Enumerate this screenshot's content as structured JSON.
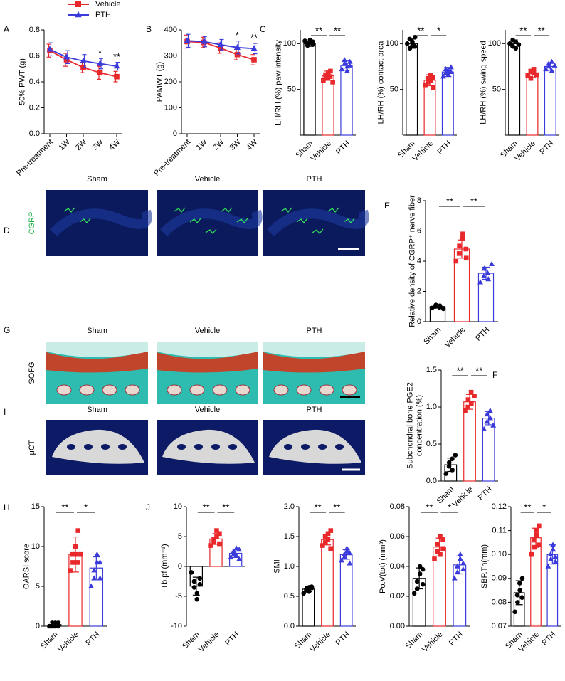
{
  "chart_data": [
    {
      "type": "line",
      "panel": "A",
      "ylabel": "50% PWT (g)",
      "categories": [
        "Pre-treatment",
        "1W",
        "2W",
        "3W",
        "4W"
      ],
      "series": [
        {
          "name": "Vehicle",
          "color": "#e8282b",
          "marker": "square",
          "values": [
            0.64,
            0.57,
            0.51,
            0.47,
            0.44
          ],
          "errors": [
            0.05,
            0.05,
            0.04,
            0.05,
            0.04
          ]
        },
        {
          "name": "PTH",
          "color": "#3b3bdc",
          "marker": "triangle",
          "values": [
            0.65,
            0.59,
            0.56,
            0.54,
            0.52
          ],
          "errors": [
            0.05,
            0.05,
            0.05,
            0.04,
            0.03
          ]
        }
      ],
      "annotations": [
        {
          "label": "*",
          "x": "3W"
        },
        {
          "label": "**",
          "x": "4W"
        }
      ],
      "ylim": [
        0,
        0.8
      ],
      "yticks": [
        {
          "value": 0,
          "label": "0.0"
        },
        0.2,
        0.4,
        0.6,
        0.8
      ]
    },
    {
      "type": "line",
      "panel": "B",
      "ylabel": "PAMWT (g)",
      "categories": [
        "Pre-treatment",
        "1W",
        "2W",
        "3W",
        "4W"
      ],
      "series": [
        {
          "name": "Vehicle",
          "color": "#e8282b",
          "marker": "square",
          "values": [
            355,
            352,
            330,
            305,
            285
          ],
          "errors": [
            25,
            20,
            20,
            20,
            20
          ]
        },
        {
          "name": "PTH",
          "color": "#3b3bdc",
          "marker": "triangle",
          "values": [
            358,
            355,
            343,
            332,
            328
          ],
          "errors": [
            25,
            20,
            20,
            25,
            20
          ]
        }
      ],
      "annotations": [
        {
          "label": "*",
          "x": "3W"
        },
        {
          "label": "**",
          "x": "4W"
        }
      ],
      "ylim": [
        0,
        400
      ],
      "yticks": [
        0,
        100,
        200,
        300,
        400
      ]
    },
    {
      "type": "bar",
      "panel": "C",
      "ylabel": "LH/RH (%) paw intensity",
      "categories": [
        "Sham",
        "Vehicle",
        "PTH"
      ],
      "colors": [
        "#000000",
        "#e8282b",
        "#3b3bdc"
      ],
      "values": [
        100,
        65,
        76
      ],
      "errors": [
        3,
        5,
        5
      ],
      "points": [
        [
          103,
          100,
          98,
          101,
          104,
          99,
          102
        ],
        [
          60,
          63,
          66,
          68,
          62,
          70,
          64,
          58
        ],
        [
          72,
          78,
          82,
          75,
          70,
          80,
          76
        ]
      ],
      "significance": [
        "**",
        "**"
      ],
      "ylim": [
        0,
        115
      ],
      "yticks": [
        50,
        100
      ]
    },
    {
      "type": "bar",
      "ylabel": "LH/RH (%)  contact area",
      "categories": [
        "Sham",
        "Vehicle",
        "PTH"
      ],
      "colors": [
        "#000000",
        "#e8282b",
        "#3b3bdc"
      ],
      "values": [
        100,
        60,
        69
      ],
      "errors": [
        5,
        6,
        5
      ],
      "points": [
        [
          100,
          95,
          105,
          98,
          102,
          107,
          97
        ],
        [
          55,
          58,
          62,
          65,
          60,
          52,
          63
        ],
        [
          64,
          68,
          72,
          70,
          66,
          74,
          69
        ]
      ],
      "significance": [
        "**",
        "*"
      ],
      "ylim": [
        0,
        115
      ],
      "yticks": [
        50,
        100
      ]
    },
    {
      "type": "bar",
      "ylabel": "LH/RH (%)  swing speed",
      "categories": [
        "Sham",
        "Vehicle",
        "PTH"
      ],
      "colors": [
        "#000000",
        "#e8282b",
        "#3b3bdc"
      ],
      "values": [
        100,
        67,
        75
      ],
      "errors": [
        4,
        4,
        4
      ],
      "points": [
        [
          100,
          97,
          104,
          102,
          95,
          99
        ],
        [
          65,
          70,
          62,
          68,
          72,
          66
        ],
        [
          72,
          78,
          75,
          80,
          70,
          76
        ]
      ],
      "significance": [
        "**",
        "**"
      ],
      "ylim": [
        0,
        115
      ],
      "yticks": [
        50,
        100
      ]
    },
    {
      "type": "bar",
      "panel": "E",
      "ylabel": "Relative density of CGRP⁺ nerve fiber",
      "categories": [
        "Sham",
        "Vehicle",
        "PTH"
      ],
      "colors": [
        "#000000",
        "#e8282b",
        "#3b3bdc"
      ],
      "values": [
        1.0,
        4.8,
        3.2
      ],
      "errors": [
        0.1,
        0.6,
        0.4
      ],
      "points": [
        [
          0.9,
          1.0,
          1.1,
          0.95,
          1.05,
          0.85
        ],
        [
          4.0,
          4.5,
          5.0,
          5.5,
          5.8,
          4.8,
          4.2
        ],
        [
          2.6,
          3.0,
          3.5,
          3.2,
          2.8,
          3.8
        ]
      ],
      "significance": [
        "**",
        "**"
      ],
      "ylim": [
        0,
        8
      ],
      "yticks": [
        0,
        2,
        4,
        6,
        8
      ]
    },
    {
      "type": "bar",
      "panel": "F",
      "ylabel": [
        "Subchondral bone PGE2",
        "concentration (%)"
      ],
      "categories": [
        "Sham",
        "Vehicle",
        "PTH"
      ],
      "colors": [
        "#000000",
        "#e8282b",
        "#3b3bdc"
      ],
      "values": [
        0.22,
        1.07,
        0.85
      ],
      "errors": [
        0.09,
        0.1,
        0.09
      ],
      "points": [
        [
          0.1,
          0.2,
          0.25,
          0.3,
          0.15,
          0.35
        ],
        [
          0.95,
          1.0,
          1.1,
          1.2,
          1.05,
          1.15
        ],
        [
          0.7,
          0.8,
          0.9,
          0.95,
          0.85,
          0.75
        ]
      ],
      "significance": [
        "**",
        "**"
      ],
      "ylim": [
        0,
        1.5
      ],
      "yticks": [
        {
          "value": 0,
          "label": "0.0"
        },
        0.5,
        {
          "value": 1,
          "label": "1.0"
        },
        1.5
      ]
    },
    {
      "type": "bar",
      "panel": "H",
      "ylabel": "OARSI score",
      "categories": [
        "Sham",
        "Vehicle",
        "PTH"
      ],
      "colors": [
        "#000000",
        "#e8282b",
        "#3b3bdc"
      ],
      "values": [
        0.2,
        9,
        7.3
      ],
      "errors": [
        0.3,
        2.2,
        1.4
      ],
      "points": [
        [
          0,
          0,
          0.5,
          0,
          0.5,
          0,
          0.5
        ],
        [
          7,
          8,
          9,
          9,
          10,
          12,
          8,
          9
        ],
        [
          5,
          6,
          7,
          8,
          9,
          8,
          6
        ]
      ],
      "significance": [
        "**",
        "*"
      ],
      "ylim": [
        0,
        15
      ],
      "yticks": [
        0,
        5,
        10,
        15
      ]
    },
    {
      "type": "bar",
      "panel": "J",
      "ylabel": "Tb.pf (mm⁻¹)",
      "categories": [
        "Sham",
        "Vehicle",
        "PTH"
      ],
      "colors": [
        "#000000",
        "#e8282b",
        "#3b3bdc"
      ],
      "values": [
        -3.3,
        4.6,
        2.2
      ],
      "errors": [
        1.5,
        0.9,
        0.7
      ],
      "points": [
        [
          -1,
          -2.5,
          -3.5,
          -4.5,
          -5.5,
          -3,
          -2
        ],
        [
          3.5,
          4,
          4.5,
          5,
          6,
          5.5,
          3.8
        ],
        [
          1.5,
          2,
          2.5,
          3,
          1.8,
          2.8,
          1.2
        ]
      ],
      "significance": [
        "**",
        "**"
      ],
      "ylim": [
        -10,
        10
      ],
      "yticks": [
        -10,
        -5,
        0,
        5,
        10
      ]
    },
    {
      "type": "bar",
      "ylabel": "SMI",
      "categories": [
        "Sham",
        "Vehicle",
        "PTH"
      ],
      "colors": [
        "#000000",
        "#e8282b",
        "#3b3bdc"
      ],
      "values": [
        0.62,
        1.45,
        1.2
      ],
      "errors": [
        0.04,
        0.09,
        0.08
      ],
      "points": [
        [
          0.55,
          0.6,
          0.62,
          0.65,
          0.58,
          0.64,
          0.66
        ],
        [
          1.35,
          1.4,
          1.5,
          1.55,
          1.45,
          1.6,
          1.3
        ],
        [
          1.1,
          1.15,
          1.2,
          1.25,
          1.3,
          1.05,
          1.22
        ]
      ],
      "significance": [
        "**",
        "**"
      ],
      "ylim": [
        0,
        2
      ],
      "yticks": [
        {
          "value": 0,
          "label": "0.0"
        },
        0.5,
        {
          "value": 1,
          "label": "1.0"
        },
        1.5,
        {
          "value": 2,
          "label": "2.0"
        }
      ]
    },
    {
      "type": "bar",
      "ylabel": "Po.V(tot) (mm³)",
      "categories": [
        "Sham",
        "Vehicle",
        "PTH"
      ],
      "colors": [
        "#000000",
        "#e8282b",
        "#3b3bdc"
      ],
      "values": [
        0.032,
        0.053,
        0.041
      ],
      "errors": [
        0.007,
        0.006,
        0.006
      ],
      "points": [
        [
          0.022,
          0.025,
          0.03,
          0.035,
          0.04,
          0.028,
          0.038
        ],
        [
          0.045,
          0.05,
          0.055,
          0.06,
          0.048,
          0.058,
          0.052
        ],
        [
          0.032,
          0.036,
          0.04,
          0.045,
          0.048,
          0.038,
          0.042
        ]
      ],
      "significance": [
        "**",
        "*"
      ],
      "ylim": [
        0,
        0.08
      ],
      "yticks": [
        {
          "value": 0,
          "label": "0.00"
        },
        0.02,
        0.04,
        0.06,
        0.08
      ]
    },
    {
      "type": "bar",
      "ylabel": "SBP.Th(mm)",
      "categories": [
        "Sham",
        "Vehicle",
        "PTH"
      ],
      "colors": [
        "#000000",
        "#e8282b",
        "#3b3bdc"
      ],
      "values": [
        0.084,
        0.107,
        0.1
      ],
      "errors": [
        0.005,
        0.004,
        0.004
      ],
      "points": [
        [
          0.076,
          0.08,
          0.083,
          0.085,
          0.088,
          0.09,
          0.082
        ],
        [
          0.1,
          0.103,
          0.106,
          0.108,
          0.11,
          0.112,
          0.104
        ],
        [
          0.095,
          0.098,
          0.1,
          0.102,
          0.104,
          0.097,
          0.099
        ]
      ],
      "significance": [
        "**",
        "*"
      ],
      "ylim": [
        0.07,
        0.12
      ],
      "yticks": [
        0.07,
        0.08,
        0.09,
        {
          "value": 0.1,
          "label": "0.10"
        },
        0.11,
        0.12
      ]
    }
  ],
  "image_panels": [
    {
      "panel": "D",
      "stain": "CGRP",
      "color": "#22b24c",
      "columns": [
        "Sham",
        "Vehicle",
        "PTH"
      ]
    },
    {
      "panel": "G",
      "stain": "SOFG",
      "color": "#000000",
      "columns": [
        "Sham",
        "Vehicle",
        "PTH"
      ]
    },
    {
      "panel": "I",
      "stain": "μCT",
      "color": "#000000",
      "columns": [
        "Sham",
        "Vehicle",
        "PTH"
      ]
    }
  ]
}
